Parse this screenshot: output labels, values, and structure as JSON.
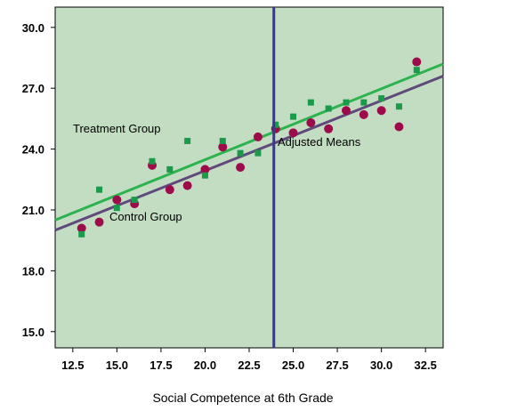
{
  "chart_data": {
    "type": "scatter",
    "title": "",
    "xlabel": "Social Competence at 6th Grade",
    "ylabel": "",
    "xlim": [
      11.5,
      33.5
    ],
    "ylim": [
      14.2,
      31.0
    ],
    "xticks": [
      12.5,
      15.0,
      17.5,
      20.0,
      22.5,
      25.0,
      27.5,
      30.0,
      32.5
    ],
    "xtick_labels": [
      "12.5",
      "15.0",
      "17.5",
      "20.0",
      "22.5",
      "25.0",
      "27.5",
      "30.0",
      "32.5"
    ],
    "yticks": [
      15.0,
      18.0,
      21.0,
      24.0,
      27.0,
      30.0
    ],
    "ytick_labels": [
      "15.0",
      "18.0",
      "21.0",
      "24.0",
      "27.0",
      "30.0"
    ],
    "grid": false,
    "series": [
      {
        "name": "Treatment Group",
        "marker": "square",
        "color": "#1a9a4a",
        "x": [
          13,
          14,
          15,
          16,
          17,
          18,
          19,
          20,
          21,
          22,
          23,
          24,
          25,
          26,
          27,
          28,
          29,
          30,
          31,
          32
        ],
        "y": [
          19.8,
          22.0,
          21.1,
          21.5,
          23.4,
          23.0,
          24.4,
          22.7,
          24.4,
          23.8,
          23.8,
          25.2,
          25.6,
          26.3,
          26.0,
          26.3,
          26.3,
          26.5,
          26.1,
          27.9
        ]
      },
      {
        "name": "Control Group",
        "marker": "circle",
        "color": "#9e0b4b",
        "x": [
          13,
          14,
          15,
          16,
          17,
          18,
          19,
          20,
          21,
          22,
          23,
          24,
          25,
          26,
          27,
          28,
          29,
          30,
          31,
          32
        ],
        "y": [
          20.1,
          20.4,
          21.5,
          21.3,
          23.2,
          22.0,
          22.2,
          23.0,
          24.1,
          23.1,
          24.6,
          25.0,
          24.8,
          25.3,
          25.0,
          25.9,
          25.7,
          25.9,
          25.1,
          28.3
        ]
      }
    ],
    "fit_lines": [
      {
        "series": "Treatment Group",
        "color": "#2db34e",
        "x": [
          11.5,
          33.5
        ],
        "y": [
          20.5,
          28.2
        ]
      },
      {
        "series": "Control Group",
        "color": "#604a7b",
        "x": [
          11.5,
          33.5
        ],
        "y": [
          20.0,
          27.6
        ]
      }
    ],
    "reference_line": {
      "x": 23.9,
      "color": "#3a3a80"
    },
    "annotations": [
      {
        "text": "Treatment Group"
      },
      {
        "text": "Control Group"
      },
      {
        "text": "Adjusted Means"
      }
    ],
    "colors": {
      "plot_background": "#c3ddc3"
    }
  }
}
